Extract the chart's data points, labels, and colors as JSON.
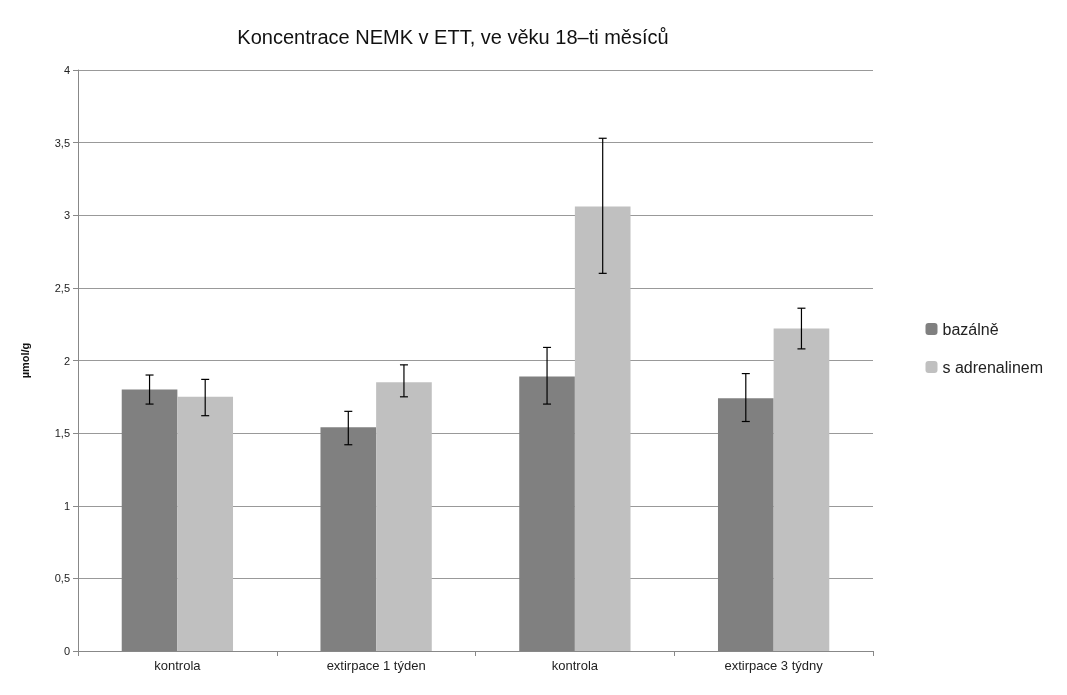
{
  "chart_data": {
    "type": "bar",
    "title": "Koncentrace NEMK v ETT, ve věku 18–ti měsíců",
    "ylabel": "µmol/g",
    "categories": [
      "kontrola",
      "extirpace 1 týden",
      "kontrola",
      "extirpace 3 týdny"
    ],
    "series": [
      {
        "name": "bazálně",
        "color": "#808080",
        "values": [
          1.8,
          1.54,
          1.89,
          1.74
        ],
        "errors": [
          [
            1.7,
            1.9
          ],
          [
            1.42,
            1.65
          ],
          [
            1.7,
            2.09
          ],
          [
            1.58,
            1.91
          ]
        ]
      },
      {
        "name": "s adrenalinem",
        "color": "#c0c0c0",
        "values": [
          1.75,
          1.85,
          3.06,
          2.22
        ],
        "errors": [
          [
            1.62,
            1.87
          ],
          [
            1.75,
            1.97
          ],
          [
            2.6,
            3.53
          ],
          [
            2.08,
            2.36
          ]
        ]
      }
    ],
    "ylim": [
      0,
      4
    ],
    "yticks": [
      0,
      {
        "value": 0.5,
        "label": "0,5"
      },
      1,
      {
        "value": 1.5,
        "label": "1,5"
      },
      2,
      {
        "value": 2.5,
        "label": "2,5"
      },
      3,
      {
        "value": 3.5,
        "label": "3,5"
      },
      4
    ],
    "grid": "y",
    "legend": "right"
  }
}
